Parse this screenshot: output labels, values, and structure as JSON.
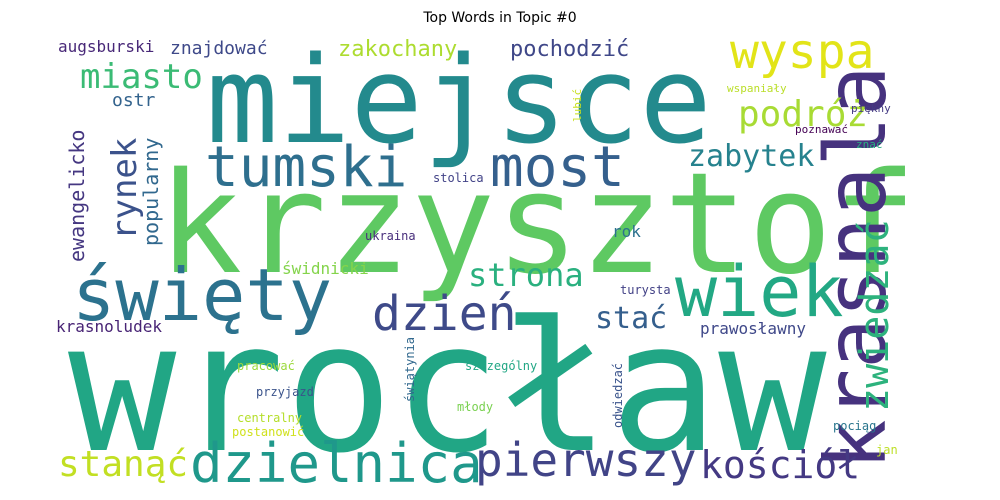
{
  "chart_data": {
    "type": "wordcloud",
    "title": "Top Words in Topic #0",
    "words": [
      {
        "text": "wrocław",
        "color": "#21a685"
      },
      {
        "text": "krzysztof",
        "color": "#5ec962"
      },
      {
        "text": "miejsce",
        "color": "#238a8d"
      },
      {
        "text": "krasnala",
        "color": "#46327e"
      },
      {
        "text": "święty",
        "color": "#2c728e"
      },
      {
        "text": "wiek",
        "color": "#22a884"
      },
      {
        "text": "tumski",
        "color": "#2e6f8e"
      },
      {
        "text": "most",
        "color": "#35608d"
      },
      {
        "text": "dzielnica",
        "color": "#1f988b"
      },
      {
        "text": "pierwszy",
        "color": "#414487"
      },
      {
        "text": "wyspa",
        "color": "#e2e418"
      },
      {
        "text": "dzień",
        "color": "#3e4a89"
      },
      {
        "text": "podróż",
        "color": "#a8db34"
      },
      {
        "text": "zwiedzać",
        "color": "#2db27d"
      },
      {
        "text": "kościół",
        "color": "#443983"
      },
      {
        "text": "stanąć",
        "color": "#c2df23"
      },
      {
        "text": "miasto",
        "color": "#3bbb75"
      },
      {
        "text": "rynek",
        "color": "#3b528b"
      },
      {
        "text": "zabytek",
        "color": "#26828e"
      },
      {
        "text": "strona",
        "color": "#2ab07f"
      },
      {
        "text": "stać",
        "color": "#355f8d"
      },
      {
        "text": "pochodzić",
        "color": "#3f4788"
      },
      {
        "text": "zakochany",
        "color": "#addc30"
      },
      {
        "text": "popularny",
        "color": "#31688e"
      },
      {
        "text": "ewangelicko",
        "color": "#453781"
      },
      {
        "text": "ostr",
        "color": "#33638d"
      },
      {
        "text": "znajdować",
        "color": "#3e4989"
      },
      {
        "text": "augsburski",
        "color": "#482878"
      },
      {
        "text": "krasnoludek",
        "color": "#482475"
      },
      {
        "text": "świdnicki",
        "color": "#84d44b"
      },
      {
        "text": "prawosławny",
        "color": "#3f4889"
      },
      {
        "text": "rok",
        "color": "#2c718e"
      },
      {
        "text": "ukraina",
        "color": "#472d7b"
      },
      {
        "text": "stolica",
        "color": "#414287"
      },
      {
        "text": "turysta",
        "color": "#424186"
      },
      {
        "text": "szczególny",
        "color": "#22a785"
      },
      {
        "text": "przyjazd",
        "color": "#3a538b"
      },
      {
        "text": "młody",
        "color": "#7ad151"
      },
      {
        "text": "pracować",
        "color": "#9bd93c"
      },
      {
        "text": "centralny",
        "color": "#b5de2b"
      },
      {
        "text": "postanowić",
        "color": "#d0e11c"
      },
      {
        "text": "świątynia",
        "color": "#31688e"
      },
      {
        "text": "odwiedzać",
        "color": "#3a548c"
      },
      {
        "text": "pociąg",
        "color": "#2a768e"
      },
      {
        "text": "jan",
        "color": "#bddf26"
      },
      {
        "text": "lubić",
        "color": "#c8e020"
      },
      {
        "text": "wspaniały",
        "color": "#bade28"
      },
      {
        "text": "piękny",
        "color": "#443a83"
      },
      {
        "text": "poznawać",
        "color": "#440154"
      },
      {
        "text": "znać",
        "color": "#28ae80"
      }
    ]
  }
}
